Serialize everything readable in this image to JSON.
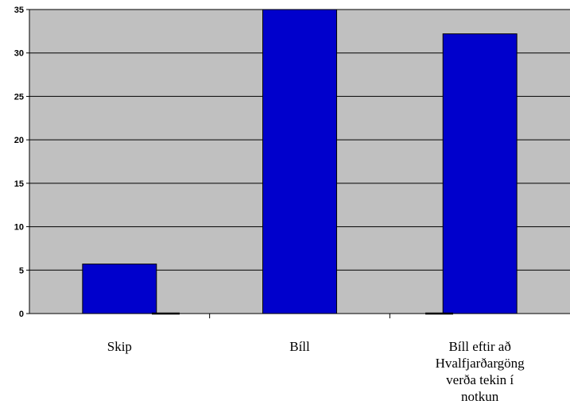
{
  "chart_data": {
    "type": "bar",
    "categories": [
      [
        "Skip"
      ],
      [
        "Bíll"
      ],
      [
        "Bíll eftir að",
        "Hvalfjarðargöng",
        "verða tekin í",
        "notkun"
      ]
    ],
    "values": [
      5.7,
      35,
      32.2
    ],
    "ylim": [
      0,
      35
    ],
    "yticks": [
      0,
      5,
      10,
      15,
      20,
      25,
      30,
      35
    ],
    "grid": true,
    "colors": {
      "bar": "#0000cc",
      "plot_background": "#c0c0c0",
      "gridline": "#000000"
    }
  }
}
